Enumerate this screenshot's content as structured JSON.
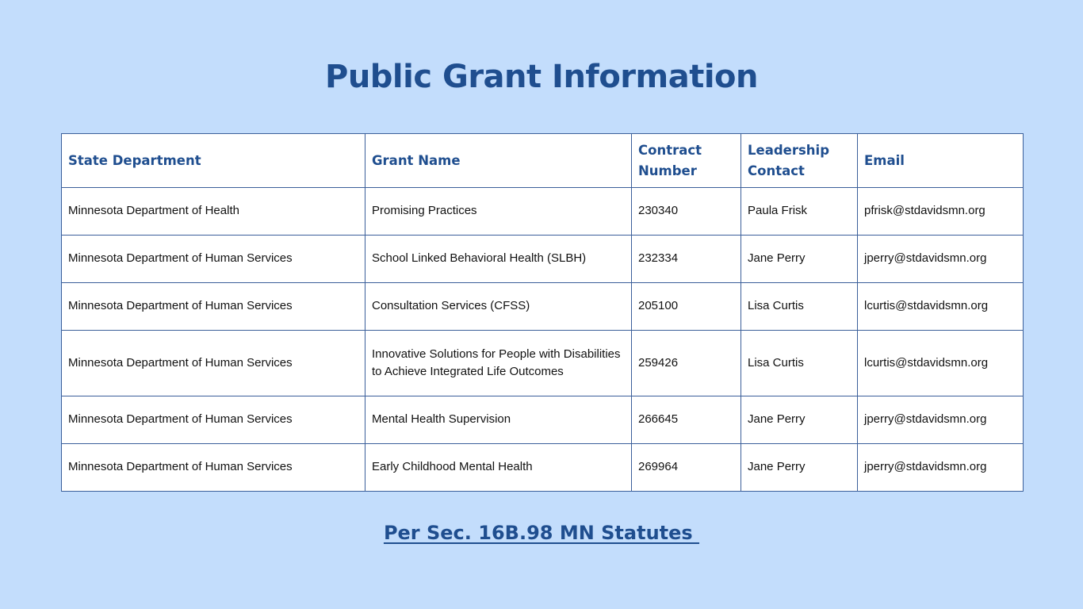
{
  "title": "Public Grant Information",
  "table": {
    "headers": [
      "State Department",
      "Grant Name",
      "Contract Number",
      "Leadership Contact",
      "Email"
    ],
    "rows": [
      [
        "Minnesota Department of Health",
        "Promising Practices",
        "230340",
        "Paula Frisk",
        "pfrisk@stdavidsmn.org"
      ],
      [
        "Minnesota Department of Human Services",
        "School Linked Behavioral Health (SLBH)",
        "232334",
        "Jane Perry",
        "jperry@stdavidsmn.org"
      ],
      [
        "Minnesota Department of Human Services",
        "Consultation Services (CFSS)",
        "205100",
        "Lisa Curtis",
        "lcurtis@stdavidsmn.org"
      ],
      [
        "Minnesota Department of Human Services",
        "Innovative Solutions for People with Disabilities to Achieve Integrated Life Outcomes",
        "259426",
        "Lisa Curtis",
        "lcurtis@stdavidsmn.org"
      ],
      [
        "Minnesota Department of Human Services",
        "Mental Health Supervision",
        "266645",
        "Jane Perry",
        "jperry@stdavidsmn.org"
      ],
      [
        "Minnesota Department of Human Services",
        "Early Childhood Mental Health",
        "269964",
        "Jane Perry",
        "jperry@stdavidsmn.org"
      ]
    ]
  },
  "footer_link": "Per Sec. 16B.98 MN Statutes ",
  "colors": {
    "background": "#c3ddfc",
    "accent": "#1f4e8f",
    "border": "#3b5f9a"
  }
}
